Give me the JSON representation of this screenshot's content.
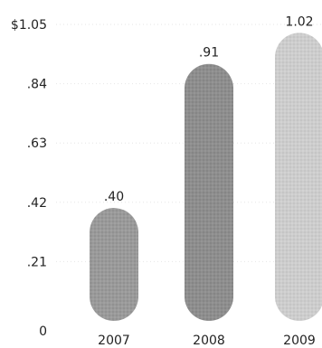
{
  "chart_data": {
    "type": "bar",
    "categories": [
      "2007",
      "2008",
      "2009"
    ],
    "values": [
      0.4,
      0.91,
      1.02
    ],
    "value_labels": [
      ".40",
      ".91",
      "1.02"
    ],
    "yticks": [
      0,
      0.21,
      0.42,
      0.63,
      0.84,
      1.05
    ],
    "ytick_labels": [
      "0",
      ".21",
      ".42",
      ".63",
      ".84",
      "$1.05"
    ],
    "ylim": [
      0,
      1.05
    ],
    "grid": true,
    "legend": "none",
    "colors": {
      "bar_2007": "#9a9a9a",
      "bar_2008": "#8e8e8e",
      "bar_2009": "#cdcdcd",
      "text": "#222222"
    }
  }
}
